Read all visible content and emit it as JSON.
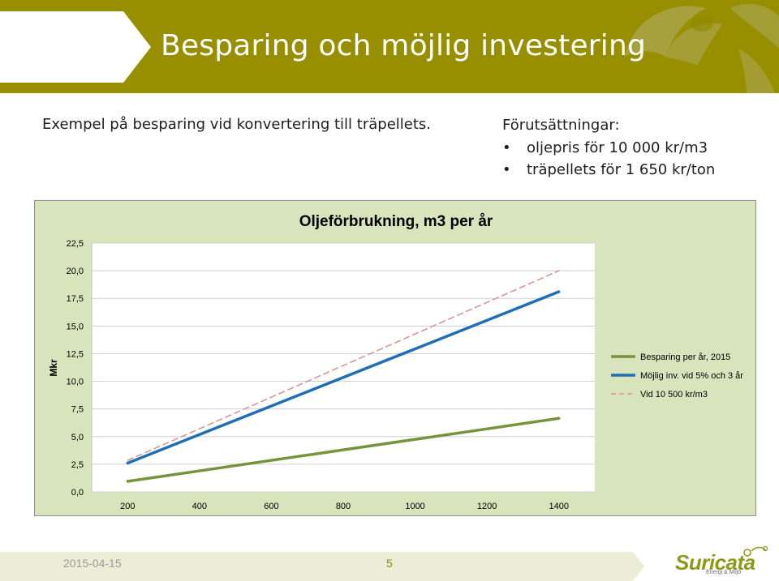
{
  "slide": {
    "title": "Besparing och möjlig investering",
    "intro": "Exempel på besparing vid konvertering till träpellets.",
    "prerequisites": {
      "title": "Förutsättningar:",
      "items": [
        "oljepris för 10 000 kr/m3",
        "träpellets för 1 650 kr/ton"
      ]
    },
    "footer": {
      "date": "2015-04-15",
      "page": "5"
    },
    "logo": {
      "name": "Suricata",
      "tagline": "Energi & Miljö"
    }
  },
  "colors": {
    "header": "#978f00",
    "chart_bg": "#d8e4bc",
    "series_green": "#77933c",
    "series_blue": "#1f6fb8",
    "series_dashed": "#d99594"
  },
  "chart_data": {
    "type": "line",
    "title": "Oljeförbrukning, m3 per år",
    "xlabel": "",
    "ylabel": "Mkr",
    "x": [
      200,
      1400
    ],
    "ylim": [
      0,
      22.5
    ],
    "yticks": [
      "0,0",
      "2,5",
      "5,0",
      "7,5",
      "10,0",
      "12,5",
      "15,0",
      "17,5",
      "20,0",
      "22,5"
    ],
    "xticks": [
      "200",
      "400",
      "600",
      "800",
      "1000",
      "1200",
      "1400"
    ],
    "grid": true,
    "legend_position": "right",
    "series": [
      {
        "name": "Besparing per år, 2015",
        "values": [
          0.95,
          6.65
        ],
        "color": "#77933c",
        "dash": false
      },
      {
        "name": "Möjlig inv. vid 5% och 3 år",
        "values": [
          2.6,
          18.1
        ],
        "color": "#1f6fb8",
        "dash": false
      },
      {
        "name": "Vid 10 500 kr/m3",
        "values": [
          2.85,
          20.0
        ],
        "color": "#d99594",
        "dash": true
      }
    ]
  }
}
